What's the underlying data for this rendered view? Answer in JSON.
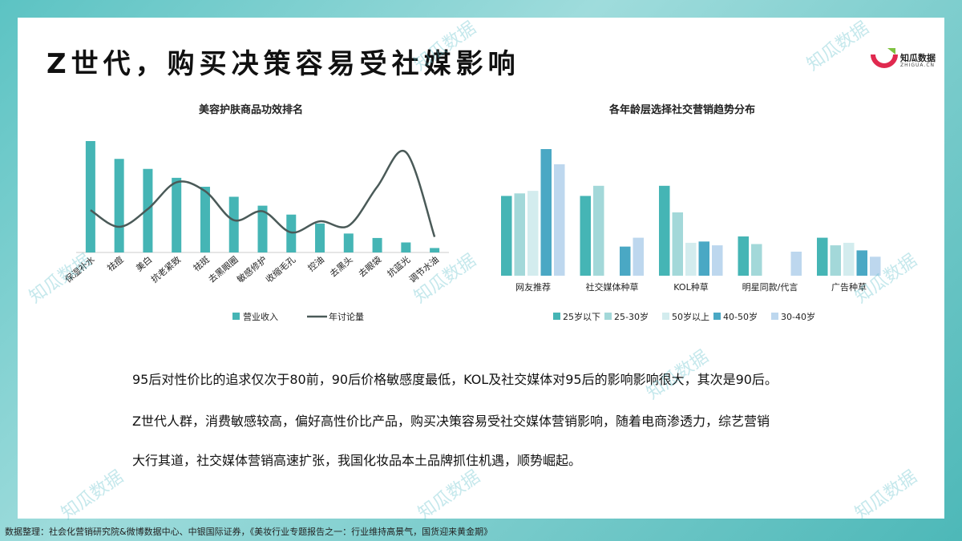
{
  "title": "Z世代，购买决策容易受社媒影响",
  "logo": {
    "name": "知瓜数据",
    "sub": "ZHIGUA.CN"
  },
  "watermark": "知瓜数据",
  "chart_data": [
    {
      "type": "bar+line",
      "title": "美容护肤商品功效排名",
      "categories": [
        "保湿补水",
        "祛痘",
        "美白",
        "抗老紧致",
        "祛斑",
        "去黑眼圈",
        "敏感修护",
        "收缩毛孔",
        "控油",
        "去黑头",
        "去眼袋",
        "抗蓝光",
        "调节水油"
      ],
      "series": [
        {
          "name": "营业收入",
          "type": "bar",
          "color": "#45b5b5",
          "values": [
            100,
            84,
            75,
            67,
            59,
            50,
            42,
            34,
            26,
            17,
            13,
            9,
            4
          ]
        },
        {
          "name": "年讨论量",
          "type": "line",
          "color": "#4a5a58",
          "values": [
            38,
            23,
            39,
            63,
            55,
            29,
            37,
            18,
            28,
            24,
            59,
            90,
            14
          ]
        }
      ],
      "legend": "bottom",
      "grid": false
    },
    {
      "type": "bar",
      "title": "各年龄层选择社交营销趋势分布",
      "categories": [
        "网友推荐",
        "社交媒体种草",
        "KOL种草",
        "明星同款/代言",
        "广告种草"
      ],
      "series": [
        {
          "name": "25岁以下",
          "color": "#45b5b5",
          "values": [
            63,
            63,
            71,
            31,
            30
          ]
        },
        {
          "name": "25-30岁",
          "color": "#a3d8d9",
          "values": [
            65,
            71,
            50,
            25,
            24
          ]
        },
        {
          "name": "50岁以上",
          "color": "#d3ecee",
          "values": [
            67,
            0,
            26,
            0,
            26
          ]
        },
        {
          "name": "40-50岁",
          "color": "#4aa8c4",
          "values": [
            100,
            23,
            27,
            0,
            20
          ]
        },
        {
          "name": "30-40岁",
          "color": "#bdd7ee",
          "values": [
            88,
            30,
            24,
            19,
            15
          ]
        }
      ],
      "legend": "bottom",
      "grid": false
    }
  ],
  "paragraphs": [
    "95后对性价比的追求仅次于80前，90后价格敏感度最低，KOL及社交媒体对95后的影响影响很大，其次是90后。",
    "Z世代人群，消费敏感较高，偏好高性价比产品，购买决策容易受社交媒体营销影响，随着电商渗透力，综艺营销",
    "大行其道，社交媒体营销高速扩张，我国化妆品本土品牌抓住机遇，顺势崛起。"
  ],
  "footer": "数据整理：社会化营销研究院&微博数据中心、中银国际证券，《美妆行业专题报告之一：行业维持高景气，国货迎来黄金期》"
}
